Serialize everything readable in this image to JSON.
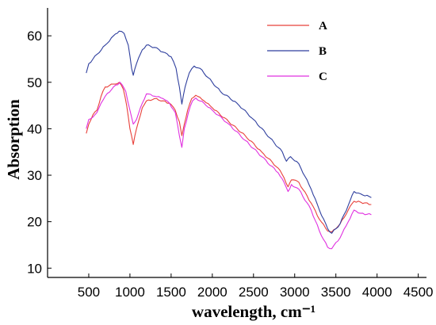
{
  "chart_data": {
    "type": "line",
    "title": "",
    "xlabel": "wavelength, cm⁻¹",
    "ylabel": "Absorption",
    "xlim": [
      0,
      4600
    ],
    "ylim": [
      8,
      66
    ],
    "x_ticks": [
      500,
      1000,
      1500,
      2000,
      2500,
      3000,
      3500,
      4000,
      4500
    ],
    "y_ticks": [
      10,
      20,
      30,
      40,
      50,
      60
    ],
    "grid": false,
    "legend_position": "top-right",
    "series": [
      {
        "name": "A",
        "color": "#e8403a",
        "points": [
          [
            470,
            39
          ],
          [
            500,
            41
          ],
          [
            550,
            43
          ],
          [
            600,
            44
          ],
          [
            650,
            47
          ],
          [
            700,
            49
          ],
          [
            800,
            49.6
          ],
          [
            870,
            50
          ],
          [
            920,
            48.5
          ],
          [
            960,
            45
          ],
          [
            1000,
            40
          ],
          [
            1040,
            36.6
          ],
          [
            1080,
            40
          ],
          [
            1150,
            44.5
          ],
          [
            1200,
            46
          ],
          [
            1300,
            46.5
          ],
          [
            1400,
            46
          ],
          [
            1480,
            45.5
          ],
          [
            1550,
            44
          ],
          [
            1600,
            41.5
          ],
          [
            1630,
            38.5
          ],
          [
            1660,
            41
          ],
          [
            1700,
            44
          ],
          [
            1750,
            46.5
          ],
          [
            1800,
            47.2
          ],
          [
            1900,
            46
          ],
          [
            2000,
            44.5
          ],
          [
            2200,
            41.5
          ],
          [
            2400,
            38.5
          ],
          [
            2600,
            35
          ],
          [
            2800,
            31.5
          ],
          [
            2870,
            29.5
          ],
          [
            2920,
            27.5
          ],
          [
            2960,
            29
          ],
          [
            3050,
            28.5
          ],
          [
            3200,
            24
          ],
          [
            3300,
            20.5
          ],
          [
            3400,
            18
          ],
          [
            3450,
            17.8
          ],
          [
            3550,
            19.5
          ],
          [
            3650,
            22.5
          ],
          [
            3720,
            24.4
          ],
          [
            3800,
            24.2
          ],
          [
            3930,
            23.7
          ]
        ]
      },
      {
        "name": "B",
        "color": "#2f3f9e",
        "points": [
          [
            470,
            52
          ],
          [
            500,
            54
          ],
          [
            550,
            55
          ],
          [
            600,
            56
          ],
          [
            700,
            58
          ],
          [
            800,
            60
          ],
          [
            870,
            61
          ],
          [
            930,
            60.5
          ],
          [
            980,
            58
          ],
          [
            1020,
            53
          ],
          [
            1040,
            51.5
          ],
          [
            1080,
            54
          ],
          [
            1150,
            57
          ],
          [
            1200,
            58
          ],
          [
            1300,
            57.5
          ],
          [
            1400,
            56.5
          ],
          [
            1500,
            55.5
          ],
          [
            1560,
            53
          ],
          [
            1600,
            49
          ],
          [
            1630,
            45.3
          ],
          [
            1670,
            49
          ],
          [
            1720,
            52
          ],
          [
            1780,
            53.5
          ],
          [
            1850,
            53
          ],
          [
            1950,
            51
          ],
          [
            2100,
            48
          ],
          [
            2300,
            45.5
          ],
          [
            2500,
            42
          ],
          [
            2700,
            38
          ],
          [
            2850,
            35
          ],
          [
            2900,
            33
          ],
          [
            2950,
            34
          ],
          [
            3050,
            32.5
          ],
          [
            3200,
            27
          ],
          [
            3300,
            22.5
          ],
          [
            3400,
            18.5
          ],
          [
            3450,
            17.5
          ],
          [
            3550,
            19.5
          ],
          [
            3650,
            23.5
          ],
          [
            3720,
            26.5
          ],
          [
            3800,
            26
          ],
          [
            3930,
            25.2
          ]
        ]
      },
      {
        "name": "C",
        "color": "#e030e0",
        "points": [
          [
            470,
            40
          ],
          [
            500,
            42
          ],
          [
            550,
            42.5
          ],
          [
            600,
            43.5
          ],
          [
            650,
            45.5
          ],
          [
            700,
            47
          ],
          [
            800,
            49
          ],
          [
            880,
            50
          ],
          [
            950,
            48
          ],
          [
            1000,
            44
          ],
          [
            1040,
            41
          ],
          [
            1080,
            42
          ],
          [
            1150,
            45.5
          ],
          [
            1200,
            47.5
          ],
          [
            1300,
            47
          ],
          [
            1400,
            46.5
          ],
          [
            1480,
            45.5
          ],
          [
            1550,
            43.5
          ],
          [
            1600,
            38.5
          ],
          [
            1630,
            36
          ],
          [
            1660,
            40
          ],
          [
            1710,
            43.5
          ],
          [
            1760,
            46
          ],
          [
            1800,
            46.6
          ],
          [
            1900,
            45.5
          ],
          [
            2000,
            44
          ],
          [
            2200,
            41
          ],
          [
            2400,
            37.5
          ],
          [
            2600,
            34
          ],
          [
            2800,
            30.5
          ],
          [
            2870,
            28.5
          ],
          [
            2920,
            26.5
          ],
          [
            2960,
            28
          ],
          [
            3050,
            27
          ],
          [
            3200,
            22.5
          ],
          [
            3300,
            18
          ],
          [
            3400,
            14.5
          ],
          [
            3450,
            14.2
          ],
          [
            3550,
            16.5
          ],
          [
            3650,
            20
          ],
          [
            3720,
            22.5
          ],
          [
            3800,
            21.8
          ],
          [
            3930,
            21.5
          ]
        ]
      }
    ]
  }
}
